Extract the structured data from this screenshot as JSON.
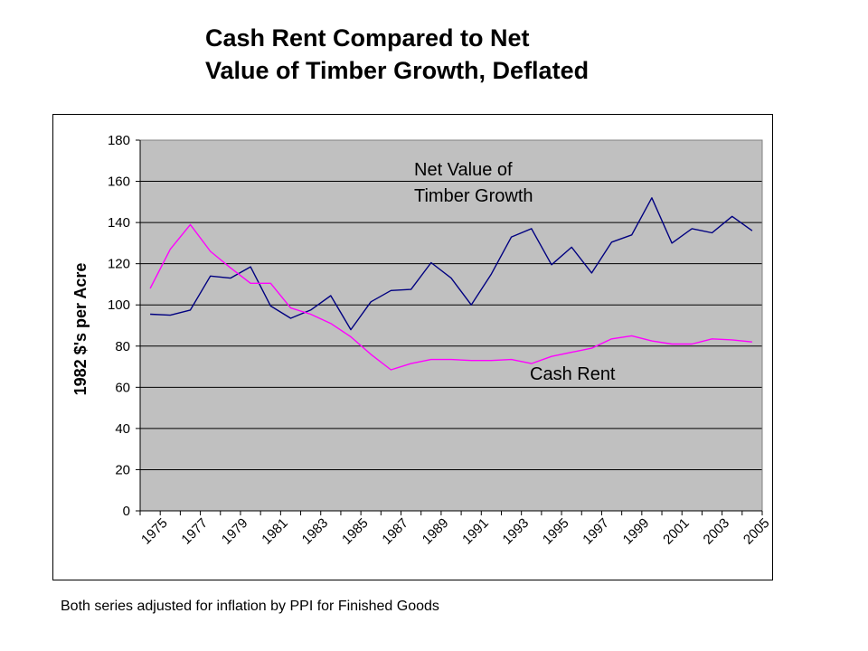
{
  "title_line1": "Cash Rent Compared to Net",
  "title_line2": "Value of Timber Growth, Deflated",
  "footnote": "Both series adjusted for inflation by PPI for Finished Goods",
  "chart_data": {
    "type": "line",
    "title": "Cash Rent Compared to Net Value of Timber Growth, Deflated",
    "xlabel": "",
    "ylabel": "1982 $'s per Acre",
    "ylim": [
      0,
      180
    ],
    "yticks": [
      0,
      20,
      40,
      60,
      80,
      100,
      120,
      140,
      160,
      180
    ],
    "x": [
      1975,
      1976,
      1977,
      1978,
      1979,
      1980,
      1981,
      1982,
      1983,
      1984,
      1985,
      1986,
      1987,
      1988,
      1989,
      1990,
      1991,
      1992,
      1993,
      1994,
      1995,
      1996,
      1997,
      1998,
      1999,
      2000,
      2001,
      2002,
      2003,
      2004,
      2005
    ],
    "xtick_labels": [
      "1975",
      "1977",
      "1979",
      "1981",
      "1983",
      "1985",
      "1987",
      "1989",
      "1991",
      "1993",
      "1995",
      "1997",
      "1999",
      "2001",
      "2003",
      "2005"
    ],
    "grid": "horizontal",
    "plot_background": "#c0c0c0",
    "series": [
      {
        "name": "Net Value of Timber Growth",
        "color": "#000080",
        "values": [
          95.5,
          95,
          97.5,
          114,
          113,
          118.5,
          99.5,
          93.5,
          97.5,
          104.5,
          88,
          101.5,
          107,
          107.5,
          120.5,
          113,
          100,
          115,
          133,
          137,
          119.5,
          128,
          115.5,
          130.5,
          134,
          152,
          130,
          137,
          135,
          143,
          136
        ]
      },
      {
        "name": "Cash Rent",
        "color": "#ff00ff",
        "values": [
          108,
          127,
          139,
          126,
          118,
          110.5,
          110.5,
          98.5,
          95.5,
          91,
          84.5,
          76,
          68.5,
          71.5,
          73.5,
          73.5,
          73,
          73,
          73.5,
          71.5,
          75,
          77,
          79,
          83.5,
          85,
          82.5,
          81,
          81,
          83.5,
          83,
          82
        ]
      }
    ],
    "annotations": [
      {
        "lines": [
          "Net Value of",
          "Timber Growth"
        ]
      },
      {
        "lines": [
          "Cash  Rent"
        ]
      }
    ]
  }
}
